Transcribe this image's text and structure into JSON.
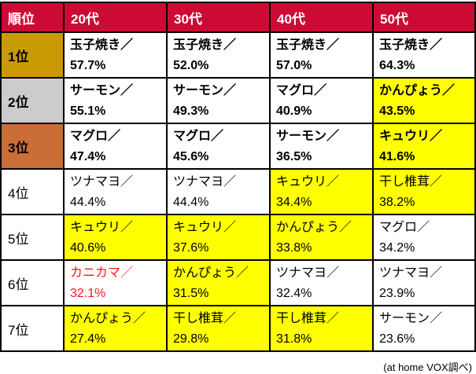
{
  "colors": {
    "header_bg": "#CD0A33",
    "gold": "#C99A04",
    "silver": "#CCCCCC",
    "bronze": "#C96E37",
    "highlight": "#FFFF00",
    "red_text": "#F9141B",
    "border": "#000000"
  },
  "chart_data": {
    "type": "table",
    "header": [
      "順位",
      "20代",
      "30代",
      "40代",
      "50代"
    ],
    "rows": [
      {
        "rank": "1位",
        "medal": "gold",
        "bold": true,
        "cells": [
          {
            "label": "玉子焼き／",
            "value": "57.7%",
            "hl": false,
            "red": false
          },
          {
            "label": "玉子焼き／",
            "value": "52.0%",
            "hl": false,
            "red": false
          },
          {
            "label": "玉子焼き／",
            "value": "57.0%",
            "hl": false,
            "red": false
          },
          {
            "label": "玉子焼き／",
            "value": "64.3%",
            "hl": false,
            "red": false
          }
        ]
      },
      {
        "rank": "2位",
        "medal": "silver",
        "bold": true,
        "cells": [
          {
            "label": "サーモン／",
            "value": "55.1%",
            "hl": false,
            "red": false
          },
          {
            "label": "サーモン／",
            "value": "49.3%",
            "hl": false,
            "red": false
          },
          {
            "label": "マグロ／",
            "value": "40.9%",
            "hl": false,
            "red": false
          },
          {
            "label": "かんぴょう／",
            "value": "43.5%",
            "hl": true,
            "red": false
          }
        ]
      },
      {
        "rank": "3位",
        "medal": "bronze",
        "bold": true,
        "cells": [
          {
            "label": "マグロ／",
            "value": "47.4%",
            "hl": false,
            "red": false
          },
          {
            "label": "マグロ／",
            "value": "45.6%",
            "hl": false,
            "red": false
          },
          {
            "label": "サーモン／",
            "value": "36.5%",
            "hl": false,
            "red": false
          },
          {
            "label": "キュウリ／",
            "value": "41.6%",
            "hl": true,
            "red": false
          }
        ]
      },
      {
        "rank": "4位",
        "medal": "none",
        "bold": false,
        "cells": [
          {
            "label": "ツナマヨ／",
            "value": "44.4%",
            "hl": false,
            "red": false
          },
          {
            "label": "ツナマヨ／",
            "value": "44.4%",
            "hl": false,
            "red": false
          },
          {
            "label": "キュウリ／",
            "value": "34.4%",
            "hl": true,
            "red": false
          },
          {
            "label": "干し椎茸／",
            "value": "38.2%",
            "hl": true,
            "red": false
          }
        ]
      },
      {
        "rank": "5位",
        "medal": "none",
        "bold": false,
        "cells": [
          {
            "label": "キュウリ／",
            "value": "40.6%",
            "hl": true,
            "red": false
          },
          {
            "label": "キュウリ／",
            "value": "37.6%",
            "hl": true,
            "red": false
          },
          {
            "label": "かんぴょう／",
            "value": "33.8%",
            "hl": true,
            "red": false
          },
          {
            "label": "マグロ／",
            "value": "34.2%",
            "hl": false,
            "red": false
          }
        ]
      },
      {
        "rank": "6位",
        "medal": "none",
        "bold": false,
        "cells": [
          {
            "label": "カニカマ／",
            "value": "32.1%",
            "hl": false,
            "red": true
          },
          {
            "label": "かんぴょう／",
            "value": "31.5%",
            "hl": true,
            "red": false
          },
          {
            "label": "ツナマヨ／",
            "value": "32.4%",
            "hl": false,
            "red": false
          },
          {
            "label": "ツナマヨ／",
            "value": "23.9%",
            "hl": false,
            "red": false
          }
        ]
      },
      {
        "rank": "7位",
        "medal": "none",
        "bold": false,
        "cells": [
          {
            "label": "かんぴょう／",
            "value": "27.4%",
            "hl": true,
            "red": false
          },
          {
            "label": "干し椎茸／",
            "value": "29.8%",
            "hl": true,
            "red": false
          },
          {
            "label": "干し椎茸／",
            "value": "31.8%",
            "hl": true,
            "red": false
          },
          {
            "label": "サーモン／",
            "value": "23.6%",
            "hl": false,
            "red": false
          }
        ]
      }
    ]
  },
  "footer": "(at home VOX調べ)"
}
